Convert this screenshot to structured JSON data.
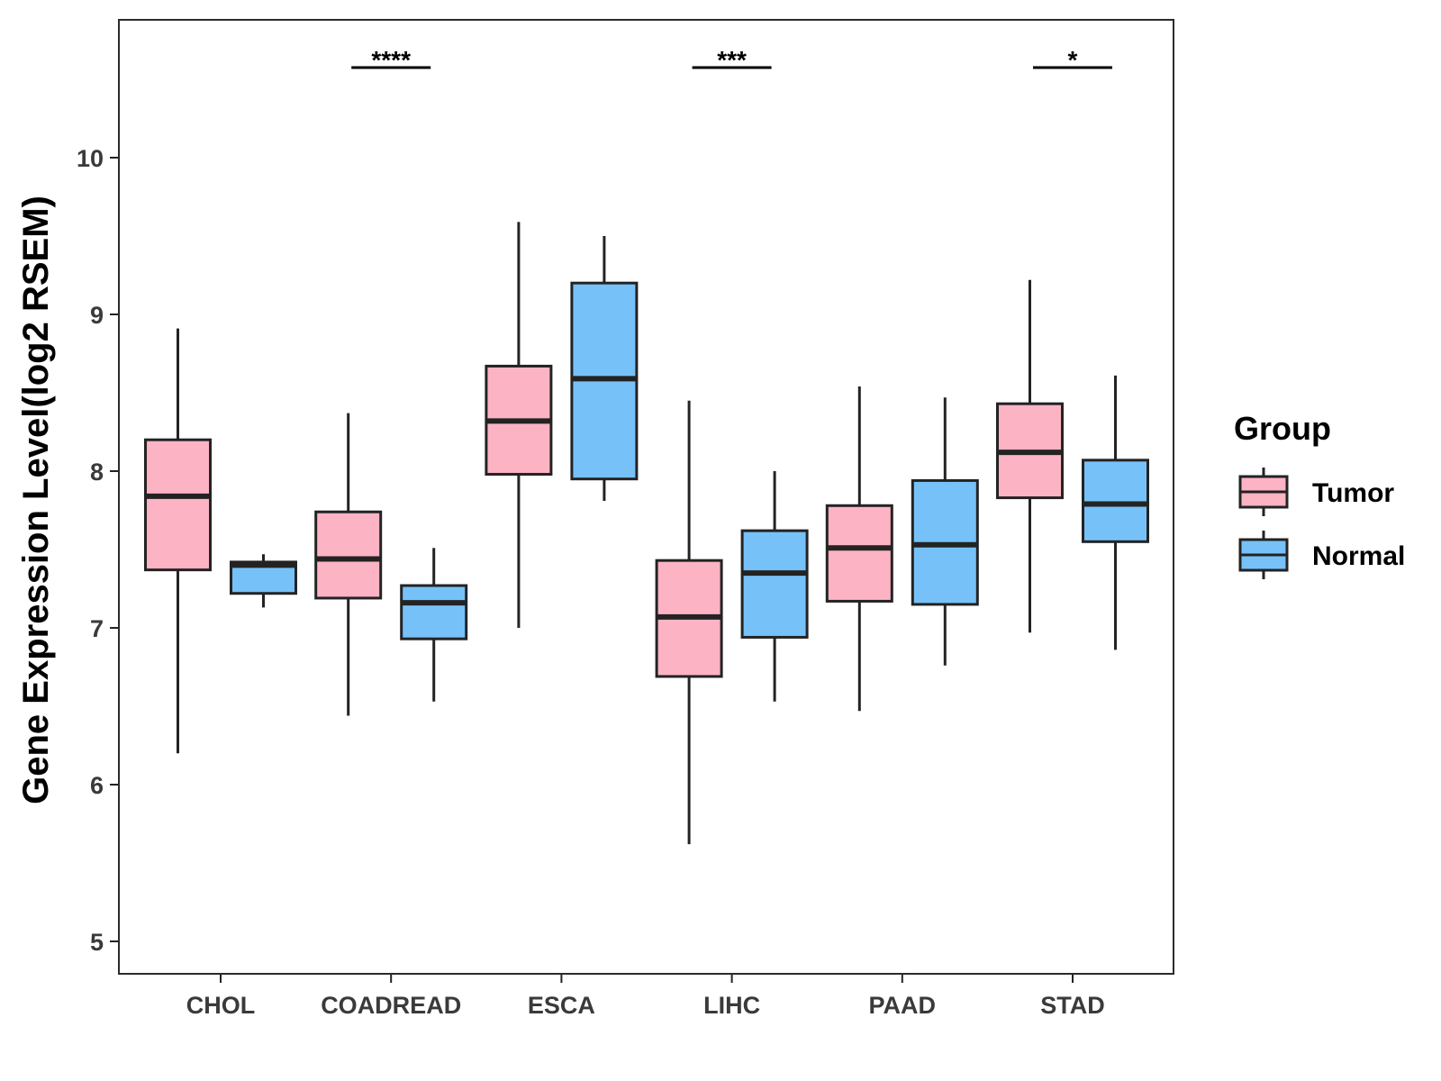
{
  "chart_data": {
    "type": "boxplot",
    "ylabel": "Gene Expression Level(log2 RSEM)",
    "xlabel": "",
    "ylim": [
      4.8,
      10.9
    ],
    "yticks": [
      5,
      6,
      7,
      8,
      9,
      10
    ],
    "ytick_labels": [
      "5",
      "6",
      "7",
      "8",
      "9",
      "10"
    ],
    "categories": [
      "CHOL",
      "COADREAD",
      "ESCA",
      "LIHC",
      "PAAD",
      "STAD"
    ],
    "series": [
      {
        "name": "Tumor",
        "color": "#FCB3C4",
        "boxes": [
          {
            "min": 6.2,
            "q1": 7.37,
            "median": 7.84,
            "q3": 8.2,
            "max": 8.91
          },
          {
            "min": 6.44,
            "q1": 7.19,
            "median": 7.44,
            "q3": 7.74,
            "max": 8.37
          },
          {
            "min": 7.0,
            "q1": 7.98,
            "median": 8.32,
            "q3": 8.67,
            "max": 9.59
          },
          {
            "min": 5.62,
            "q1": 6.69,
            "median": 7.07,
            "q3": 7.43,
            "max": 8.45
          },
          {
            "min": 6.47,
            "q1": 7.17,
            "median": 7.51,
            "q3": 7.78,
            "max": 8.54
          },
          {
            "min": 6.97,
            "q1": 7.83,
            "median": 8.12,
            "q3": 8.43,
            "max": 9.22
          }
        ]
      },
      {
        "name": "Normal",
        "color": "#77C1F9",
        "boxes": [
          {
            "min": 7.13,
            "q1": 7.22,
            "median": 7.4,
            "q3": 7.42,
            "max": 7.47
          },
          {
            "min": 6.53,
            "q1": 6.93,
            "median": 7.16,
            "q3": 7.27,
            "max": 7.51
          },
          {
            "min": 7.81,
            "q1": 7.95,
            "median": 8.59,
            "q3": 9.2,
            "max": 9.5
          },
          {
            "min": 6.53,
            "q1": 6.94,
            "median": 7.35,
            "q3": 7.62,
            "max": 8.0
          },
          {
            "min": 6.76,
            "q1": 7.15,
            "median": 7.53,
            "q3": 7.94,
            "max": 8.47
          },
          {
            "min": 6.86,
            "q1": 7.55,
            "median": 7.79,
            "q3": 8.07,
            "max": 8.61
          }
        ]
      }
    ],
    "significance": [
      {
        "category": "COADREAD",
        "label": "****"
      },
      {
        "category": "LIHC",
        "label": "***"
      },
      {
        "category": "STAD",
        "label": "*"
      }
    ],
    "legend": {
      "title": "Group",
      "placement": "right",
      "items": [
        {
          "label": "Tumor",
          "color": "#FCB3C4"
        },
        {
          "label": "Normal",
          "color": "#77C1F9"
        }
      ]
    }
  }
}
